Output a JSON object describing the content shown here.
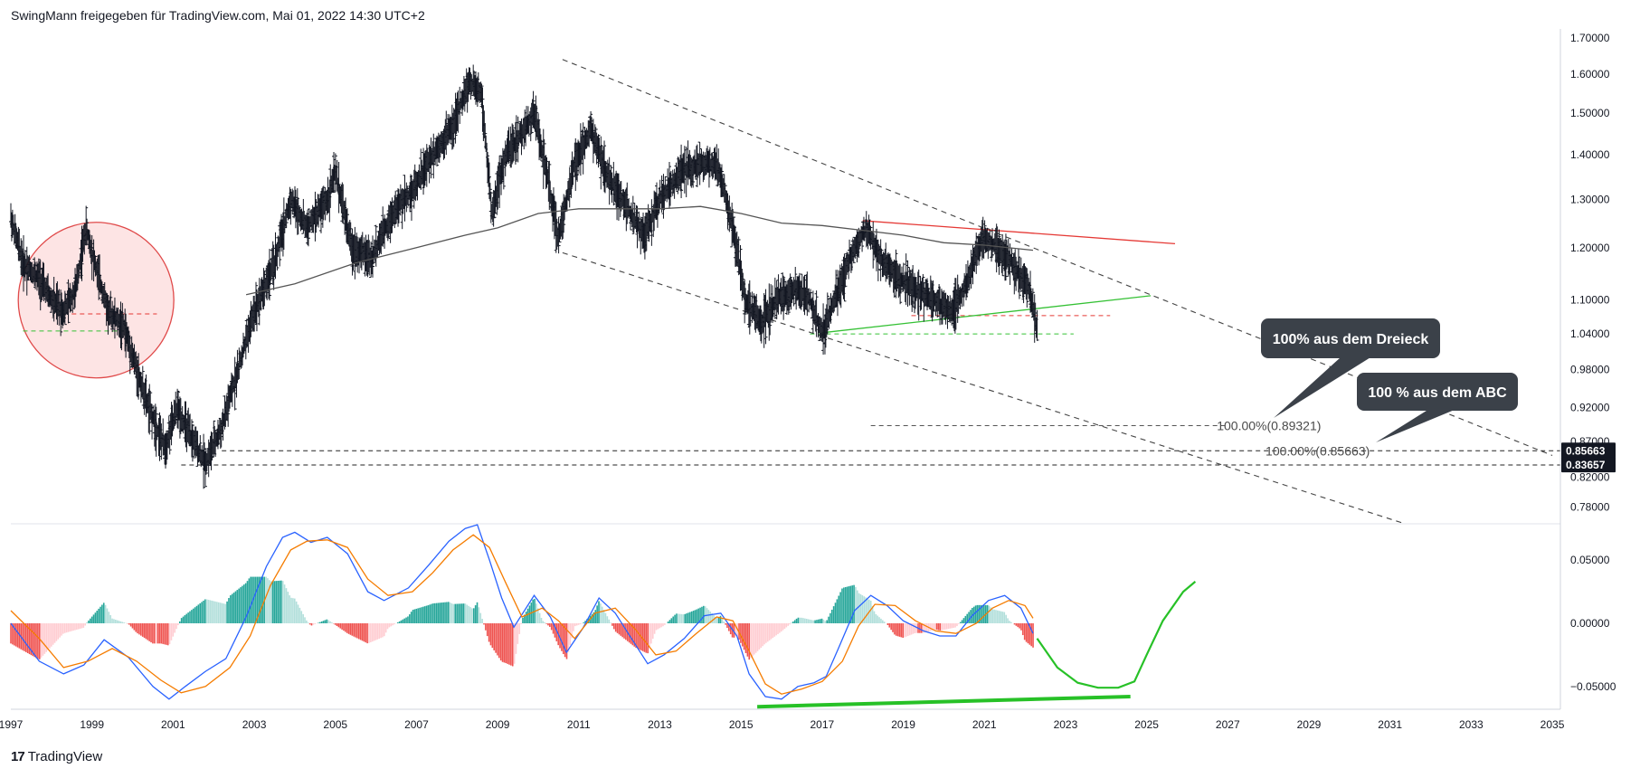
{
  "header": {
    "text": "SwingMann freigegeben für TradingView.com, Mai 01, 2022 14:30 UTC+2"
  },
  "brand": {
    "logo": "17",
    "name": "TradingView"
  },
  "colors": {
    "price": "#131722",
    "ma": "#555555",
    "resistance": "#e53935",
    "support": "#35c135",
    "channel": "#444444",
    "circle_fill": "#fde4e4",
    "circle_stroke": "#e04a4a",
    "macd": "#2962ff",
    "signal": "#f57c00",
    "hist_up": "#26a69a",
    "hist_up_light": "#b2dfdb",
    "hist_down": "#ef5350",
    "hist_down_light": "#ffcdd2",
    "callout": "#3b4149",
    "divergence": "#27c127"
  },
  "chart_data": [
    {
      "type": "line",
      "name": "price",
      "title": "",
      "xlim": [
        1997,
        2035.2
      ],
      "ylim": [
        0.76,
        1.72
      ],
      "y_ticks": [
        "1.70000",
        "1.60000",
        "1.50000",
        "1.40000",
        "1.30000",
        "1.20000",
        "1.10000",
        "1.04000",
        "0.98000",
        "0.92000",
        "0.87000",
        "0.82000",
        "0.78000"
      ],
      "y_tick_values": [
        1.7,
        1.6,
        1.5,
        1.4,
        1.3,
        1.2,
        1.1,
        1.04,
        0.98,
        0.92,
        0.87,
        0.82,
        0.78
      ],
      "price_path": [
        [
          1997.0,
          1.26
        ],
        [
          1997.3,
          1.17
        ],
        [
          1997.7,
          1.14
        ],
        [
          1998.0,
          1.1
        ],
        [
          1998.3,
          1.08
        ],
        [
          1998.6,
          1.12
        ],
        [
          1998.85,
          1.24
        ],
        [
          1999.1,
          1.16
        ],
        [
          1999.4,
          1.08
        ],
        [
          1999.8,
          1.05
        ],
        [
          2000.1,
          0.98
        ],
        [
          2000.4,
          0.92
        ],
        [
          2000.8,
          0.86
        ],
        [
          2001.1,
          0.92
        ],
        [
          2001.4,
          0.88
        ],
        [
          2001.8,
          0.84
        ],
        [
          2002.2,
          0.89
        ],
        [
          2002.6,
          0.98
        ],
        [
          2003.0,
          1.08
        ],
        [
          2003.5,
          1.17
        ],
        [
          2003.9,
          1.3
        ],
        [
          2004.3,
          1.24
        ],
        [
          2004.8,
          1.3
        ],
        [
          2005.0,
          1.36
        ],
        [
          2005.4,
          1.2
        ],
        [
          2005.9,
          1.18
        ],
        [
          2006.4,
          1.27
        ],
        [
          2006.9,
          1.32
        ],
        [
          2007.4,
          1.4
        ],
        [
          2007.9,
          1.47
        ],
        [
          2008.3,
          1.58
        ],
        [
          2008.6,
          1.55
        ],
        [
          2008.85,
          1.27
        ],
        [
          2009.2,
          1.4
        ],
        [
          2009.6,
          1.45
        ],
        [
          2009.9,
          1.5
        ],
        [
          2010.5,
          1.22
        ],
        [
          2010.9,
          1.38
        ],
        [
          2011.3,
          1.46
        ],
        [
          2011.7,
          1.35
        ],
        [
          2012.1,
          1.3
        ],
        [
          2012.6,
          1.22
        ],
        [
          2013.0,
          1.3
        ],
        [
          2013.5,
          1.36
        ],
        [
          2014.0,
          1.38
        ],
        [
          2014.4,
          1.38
        ],
        [
          2014.8,
          1.24
        ],
        [
          2015.1,
          1.1
        ],
        [
          2015.5,
          1.06
        ],
        [
          2015.9,
          1.1
        ],
        [
          2016.3,
          1.12
        ],
        [
          2016.7,
          1.1
        ],
        [
          2017.0,
          1.04
        ],
        [
          2017.5,
          1.14
        ],
        [
          2017.8,
          1.2
        ],
        [
          2018.1,
          1.24
        ],
        [
          2018.5,
          1.17
        ],
        [
          2018.9,
          1.14
        ],
        [
          2019.3,
          1.12
        ],
        [
          2019.8,
          1.1
        ],
        [
          2020.2,
          1.08
        ],
        [
          2020.5,
          1.12
        ],
        [
          2020.8,
          1.19
        ],
        [
          2021.0,
          1.22
        ],
        [
          2021.3,
          1.2
        ],
        [
          2021.6,
          1.18
        ],
        [
          2021.9,
          1.14
        ],
        [
          2022.1,
          1.12
        ],
        [
          2022.3,
          1.05
        ]
      ],
      "moving_average": [
        [
          2002.8,
          1.11
        ],
        [
          2004.0,
          1.13
        ],
        [
          2005.5,
          1.17
        ],
        [
          2007.0,
          1.2
        ],
        [
          2008.2,
          1.225
        ],
        [
          2009.0,
          1.24
        ],
        [
          2010.0,
          1.27
        ],
        [
          2011.0,
          1.28
        ],
        [
          2012.0,
          1.28
        ],
        [
          2013.0,
          1.28
        ],
        [
          2014.0,
          1.285
        ],
        [
          2015.0,
          1.27
        ],
        [
          2016.0,
          1.25
        ],
        [
          2017.0,
          1.245
        ],
        [
          2018.0,
          1.235
        ],
        [
          2019.0,
          1.225
        ],
        [
          2020.0,
          1.21
        ],
        [
          2021.0,
          1.205
        ],
        [
          2022.2,
          1.195
        ]
      ],
      "lines": {
        "resistance": [
          [
            2018.0,
            1.255
          ],
          [
            2025.7,
            1.208
          ]
        ],
        "support": [
          [
            2017.0,
            1.042
          ],
          [
            2025.1,
            1.108
          ]
        ],
        "channel_upper": [
          [
            2010.6,
            1.64
          ],
          [
            2035.0,
            0.85
          ]
        ],
        "channel_lower": [
          [
            2010.6,
            1.19
          ],
          [
            2031.3,
            0.76
          ]
        ],
        "red_dashed_small": [
          [
            1998.5,
            1.075
          ],
          [
            2000.6,
            1.075
          ]
        ],
        "green_dashed_small": [
          [
            1997.3,
            1.045
          ],
          [
            1999.8,
            1.045
          ]
        ],
        "red_dashed_2022": [
          [
            2019.2,
            1.072
          ],
          [
            2024.1,
            1.072
          ]
        ],
        "green_dashed_2022": [
          [
            2016.7,
            1.04
          ],
          [
            2023.2,
            1.04
          ]
        ],
        "fib_1": [
          [
            2018.2,
            0.8932
          ],
          [
            2027.0,
            0.8932
          ]
        ],
        "fib_2": [
          [
            2002.2,
            0.8566
          ],
          [
            2035.2,
            0.8566
          ]
        ],
        "fib_3": [
          [
            2001.2,
            0.8366
          ],
          [
            2035.2,
            0.8366
          ]
        ]
      },
      "circle": {
        "center_x": 1999.1,
        "center_y": 1.1,
        "note": "highlighted region"
      },
      "fib_labels": [
        "100.00%(0.89321)",
        "100.00%(0.85663)"
      ],
      "price_tags": [
        "0.85663",
        "0.83657"
      ],
      "annotations": [
        "100% aus dem Dreieck",
        "100 % aus dem ABC"
      ]
    },
    {
      "type": "line",
      "name": "macd",
      "xlim": [
        1997,
        2035.2
      ],
      "ylim": [
        -0.068,
        0.078
      ],
      "y_ticks": [
        "0.05000",
        "0.00000",
        "−0.05000"
      ],
      "y_tick_values": [
        0.05,
        0.0,
        -0.05
      ],
      "x_ticks": [
        "1997",
        "1999",
        "2001",
        "2003",
        "2005",
        "2007",
        "2009",
        "2011",
        "2013",
        "2015",
        "2017",
        "2019",
        "2021",
        "2023",
        "2025",
        "2027",
        "2029",
        "2031",
        "2033",
        "2035"
      ],
      "x_tick_values": [
        1997,
        1999,
        2001,
        2003,
        2005,
        2007,
        2009,
        2011,
        2013,
        2015,
        2017,
        2019,
        2021,
        2023,
        2025,
        2027,
        2029,
        2031,
        2033,
        2035
      ],
      "macd_line": [
        [
          1997.0,
          0.0
        ],
        [
          1997.7,
          -0.03
        ],
        [
          1998.3,
          -0.04
        ],
        [
          1998.8,
          -0.033
        ],
        [
          1999.3,
          -0.013
        ],
        [
          1999.9,
          -0.027
        ],
        [
          2000.5,
          -0.05
        ],
        [
          2000.9,
          -0.06
        ],
        [
          2001.3,
          -0.05
        ],
        [
          2001.8,
          -0.038
        ],
        [
          2002.3,
          -0.028
        ],
        [
          2002.8,
          0.005
        ],
        [
          2003.3,
          0.045
        ],
        [
          2003.7,
          0.068
        ],
        [
          2004.0,
          0.072
        ],
        [
          2004.4,
          0.064
        ],
        [
          2004.8,
          0.068
        ],
        [
          2005.3,
          0.055
        ],
        [
          2005.8,
          0.025
        ],
        [
          2006.2,
          0.018
        ],
        [
          2006.8,
          0.028
        ],
        [
          2007.3,
          0.046
        ],
        [
          2007.8,
          0.065
        ],
        [
          2008.2,
          0.075
        ],
        [
          2008.5,
          0.078
        ],
        [
          2008.8,
          0.05
        ],
        [
          2009.1,
          0.02
        ],
        [
          2009.4,
          -0.003
        ],
        [
          2009.9,
          0.022
        ],
        [
          2010.3,
          0.005
        ],
        [
          2010.7,
          -0.023
        ],
        [
          2011.1,
          -0.004
        ],
        [
          2011.5,
          0.02
        ],
        [
          2011.9,
          0.008
        ],
        [
          2012.3,
          -0.012
        ],
        [
          2012.7,
          -0.032
        ],
        [
          2013.1,
          -0.025
        ],
        [
          2013.6,
          -0.012
        ],
        [
          2014.1,
          0.006
        ],
        [
          2014.5,
          0.008
        ],
        [
          2014.9,
          -0.01
        ],
        [
          2015.2,
          -0.04
        ],
        [
          2015.6,
          -0.058
        ],
        [
          2016.0,
          -0.06
        ],
        [
          2016.4,
          -0.05
        ],
        [
          2016.8,
          -0.047
        ],
        [
          2017.1,
          -0.042
        ],
        [
          2017.4,
          -0.02
        ],
        [
          2017.8,
          0.01
        ],
        [
          2018.2,
          0.022
        ],
        [
          2018.6,
          0.014
        ],
        [
          2019.0,
          0.002
        ],
        [
          2019.5,
          -0.006
        ],
        [
          2019.9,
          -0.01
        ],
        [
          2020.3,
          -0.01
        ],
        [
          2020.7,
          0.006
        ],
        [
          2021.1,
          0.018
        ],
        [
          2021.5,
          0.022
        ],
        [
          2021.9,
          0.012
        ],
        [
          2022.2,
          -0.008
        ]
      ],
      "signal_line": [
        [
          1997.0,
          0.01
        ],
        [
          1997.7,
          -0.012
        ],
        [
          1998.3,
          -0.035
        ],
        [
          1998.9,
          -0.03
        ],
        [
          1999.5,
          -0.02
        ],
        [
          2000.1,
          -0.03
        ],
        [
          2000.7,
          -0.045
        ],
        [
          2001.2,
          -0.055
        ],
        [
          2001.8,
          -0.05
        ],
        [
          2002.4,
          -0.035
        ],
        [
          2002.9,
          -0.01
        ],
        [
          2003.4,
          0.03
        ],
        [
          2003.9,
          0.058
        ],
        [
          2004.3,
          0.065
        ],
        [
          2004.8,
          0.066
        ],
        [
          2005.3,
          0.06
        ],
        [
          2005.8,
          0.035
        ],
        [
          2006.3,
          0.022
        ],
        [
          2006.9,
          0.025
        ],
        [
          2007.4,
          0.04
        ],
        [
          2007.9,
          0.058
        ],
        [
          2008.4,
          0.07
        ],
        [
          2008.8,
          0.06
        ],
        [
          2009.2,
          0.032
        ],
        [
          2009.6,
          0.005
        ],
        [
          2010.1,
          0.012
        ],
        [
          2010.5,
          0.002
        ],
        [
          2010.9,
          -0.012
        ],
        [
          2011.4,
          0.008
        ],
        [
          2011.9,
          0.012
        ],
        [
          2012.4,
          -0.005
        ],
        [
          2012.9,
          -0.025
        ],
        [
          2013.4,
          -0.022
        ],
        [
          2013.9,
          -0.008
        ],
        [
          2014.4,
          0.005
        ],
        [
          2014.8,
          0.002
        ],
        [
          2015.2,
          -0.022
        ],
        [
          2015.6,
          -0.048
        ],
        [
          2016.0,
          -0.056
        ],
        [
          2016.5,
          -0.052
        ],
        [
          2017.0,
          -0.046
        ],
        [
          2017.5,
          -0.03
        ],
        [
          2017.9,
          -0.002
        ],
        [
          2018.3,
          0.015
        ],
        [
          2018.8,
          0.014
        ],
        [
          2019.3,
          0.002
        ],
        [
          2019.8,
          -0.006
        ],
        [
          2020.3,
          -0.008
        ],
        [
          2020.8,
          0.0
        ],
        [
          2021.2,
          0.012
        ],
        [
          2021.6,
          0.018
        ],
        [
          2022.0,
          0.014
        ],
        [
          2022.2,
          0.004
        ]
      ],
      "histogram_up_ranges": [
        [
          2000.9,
          2001.6
        ],
        [
          2002.1,
          2005.1
        ],
        [
          2006.7,
          2008.6
        ],
        [
          2010.9,
          2011.8
        ],
        [
          2013.2,
          2014.5
        ],
        [
          2016.3,
          2018.4
        ],
        [
          2020.5,
          2021.5
        ]
      ],
      "histogram_down_ranges": [
        [
          1997.0,
          2000.8
        ],
        [
          2005.2,
          2006.6
        ],
        [
          2008.7,
          2010.8
        ],
        [
          2011.9,
          2013.1
        ],
        [
          2014.6,
          2016.2
        ],
        [
          2018.5,
          2020.4
        ],
        [
          2021.6,
          2022.2
        ]
      ],
      "projection": [
        [
          2022.3,
          -0.012
        ],
        [
          2022.8,
          -0.035
        ],
        [
          2023.3,
          -0.047
        ],
        [
          2023.8,
          -0.051
        ],
        [
          2024.3,
          -0.051
        ],
        [
          2024.7,
          -0.046
        ],
        [
          2025.0,
          -0.025
        ],
        [
          2025.4,
          0.002
        ],
        [
          2025.9,
          0.025
        ],
        [
          2026.2,
          0.033
        ]
      ],
      "divergence_line": [
        [
          2015.4,
          -0.066
        ],
        [
          2024.6,
          -0.058
        ]
      ]
    }
  ]
}
